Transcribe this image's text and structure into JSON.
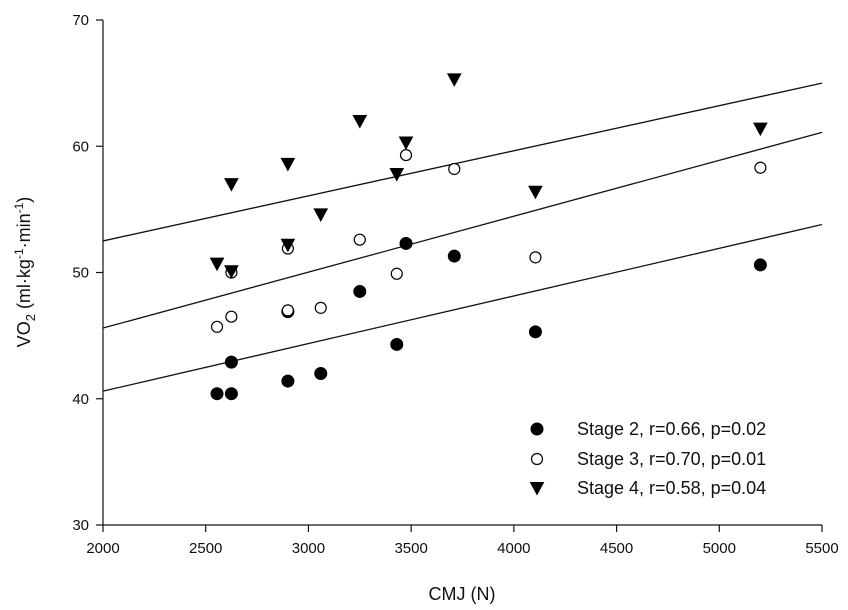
{
  "chart_data": {
    "type": "scatter",
    "xlabel": "CMJ (N)",
    "ylabel": {
      "prefix": "VO",
      "sub": "2",
      "units_open": " (ml",
      "dot1": "·",
      "kg": "kg",
      "sup1": "-1",
      "dot2": "·",
      "min": "min",
      "sup2": "-1",
      "units_close": ")"
    },
    "xlim": [
      2000,
      5500
    ],
    "ylim": [
      30,
      70
    ],
    "x_ticks": [
      "2000",
      "2500",
      "3000",
      "3500",
      "4000",
      "4500",
      "5000",
      "5500"
    ],
    "y_ticks": [
      "30",
      "40",
      "50",
      "60",
      "70"
    ],
    "legend_position": "bottom-right",
    "grid": false,
    "series": [
      {
        "name": "Stage 2, r=0.66, p=0.02",
        "marker": "filled-circle",
        "points": [
          [
            2555,
            40.4
          ],
          [
            2625,
            40.4
          ],
          [
            2625,
            42.9
          ],
          [
            2900,
            41.4
          ],
          [
            2900,
            46.9
          ],
          [
            3060,
            42.0
          ],
          [
            3250,
            48.5
          ],
          [
            3430,
            44.3
          ],
          [
            3475,
            52.3
          ],
          [
            3710,
            51.3
          ],
          [
            4105,
            45.3
          ],
          [
            5200,
            50.6
          ]
        ],
        "fit": [
          [
            2000,
            40.6
          ],
          [
            5500,
            53.8
          ]
        ]
      },
      {
        "name": "Stage 3, r=0.70, p=0.01",
        "marker": "open-circle",
        "points": [
          [
            2555,
            45.7
          ],
          [
            2625,
            46.5
          ],
          [
            2625,
            50.0
          ],
          [
            2900,
            47.0
          ],
          [
            2900,
            51.9
          ],
          [
            3060,
            47.2
          ],
          [
            3250,
            52.6
          ],
          [
            3430,
            49.9
          ],
          [
            3475,
            59.3
          ],
          [
            3710,
            58.2
          ],
          [
            4105,
            51.2
          ],
          [
            5200,
            58.3
          ]
        ],
        "fit": [
          [
            2000,
            45.6
          ],
          [
            5500,
            61.1
          ]
        ]
      },
      {
        "name": "Stage 4, r=0.58, p=0.04",
        "marker": "filled-triangle-down",
        "points": [
          [
            2555,
            50.7
          ],
          [
            2625,
            50.1
          ],
          [
            2625,
            57.0
          ],
          [
            2900,
            52.2
          ],
          [
            2900,
            58.6
          ],
          [
            3060,
            54.6
          ],
          [
            3250,
            62.0
          ],
          [
            3430,
            57.8
          ],
          [
            3475,
            60.3
          ],
          [
            3710,
            65.3
          ],
          [
            4105,
            56.4
          ],
          [
            5200,
            61.4
          ]
        ],
        "fit": [
          [
            2000,
            52.5
          ],
          [
            5500,
            65.0
          ]
        ]
      }
    ]
  }
}
